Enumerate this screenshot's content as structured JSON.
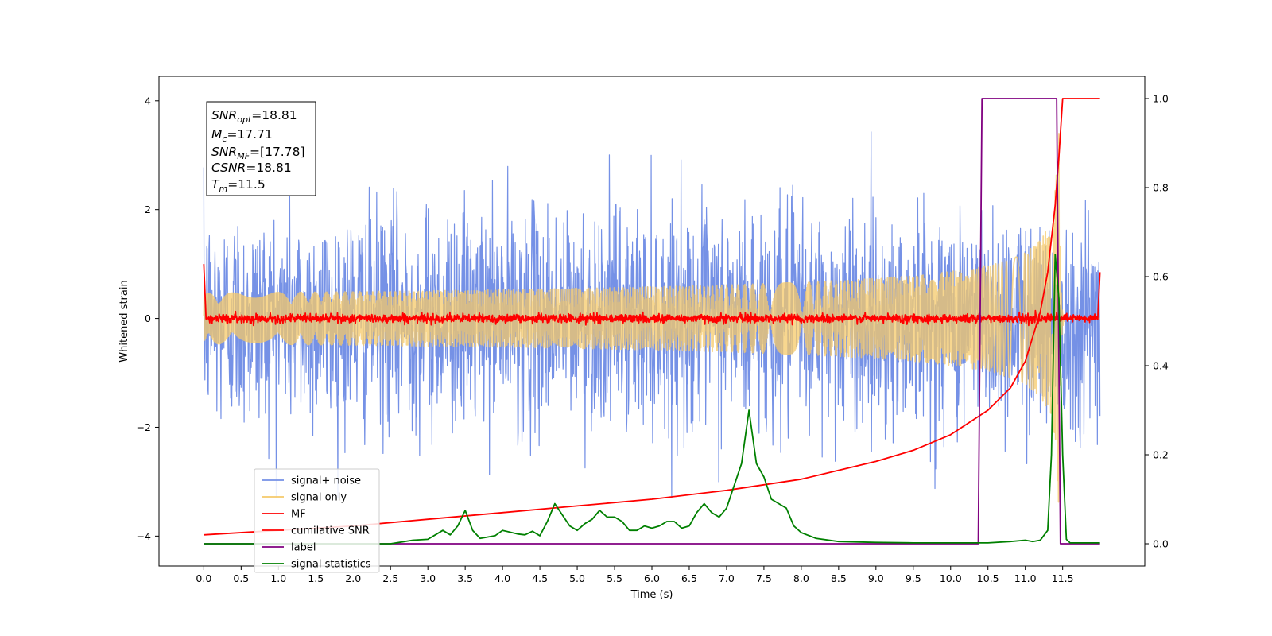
{
  "chart_data": {
    "type": "line",
    "title": "",
    "xlabel": "Time (s)",
    "ylabel": "Whitened strain",
    "xlim": [
      -0.6,
      12.6
    ],
    "ylim": [
      -4.55,
      4.45
    ],
    "y2lim": [
      -0.05,
      1.05
    ],
    "x_ticks": [
      "0.0",
      "0.5",
      "1.0",
      "1.5",
      "2.0",
      "2.5",
      "3.0",
      "3.5",
      "4.0",
      "4.5",
      "5.0",
      "5.5",
      "6.0",
      "6.5",
      "7.0",
      "7.5",
      "8.0",
      "8.5",
      "9.0",
      "9.5",
      "10.0",
      "10.5",
      "11.0",
      "11.5"
    ],
    "y_ticks": [
      "4",
      "2",
      "0",
      "−2",
      "−4"
    ],
    "y2_ticks": [
      "1.0",
      "0.8",
      "0.6",
      "0.4",
      "0.2",
      "0.0"
    ],
    "grid": false,
    "legend_position": "lower-left",
    "annotation": {
      "snr_opt": {
        "label": "SNR",
        "sub": "opt",
        "value": "=18.81"
      },
      "mc": {
        "label": "M",
        "sub": "c",
        "value": "=17.71"
      },
      "snr_mf": {
        "label": "SNR",
        "sub": "MF",
        "value": "=[17.78]"
      },
      "csnr": {
        "label": "CSNR",
        "value": "=18.81"
      },
      "tm": {
        "label": "T",
        "sub": "m",
        "value": "=11.5"
      }
    },
    "series": [
      {
        "name": "signal+ noise",
        "color": "#7591e6",
        "axis": "left",
        "kind": "noise",
        "x_range": [
          0.0,
          12.0
        ],
        "amplitude_sigma": 1.0
      },
      {
        "name": "signal only",
        "color": "#f5c96a",
        "axis": "left",
        "kind": "chirp",
        "x_range": [
          0.0,
          12.0
        ],
        "peak_amplitude": 3.4,
        "merger_time": 11.45
      },
      {
        "name": "MF",
        "color": "#ff0000",
        "axis": "left",
        "kind": "mf",
        "x_range": [
          0.0,
          12.0
        ],
        "start_value": 1.0,
        "end_value": 0.85,
        "noise_sigma": 0.04
      },
      {
        "name": "cumilative SNR",
        "color": "#ff0000",
        "axis": "right",
        "x": [
          0.0,
          1.0,
          2.0,
          3.0,
          4.0,
          5.0,
          6.0,
          7.0,
          8.0,
          8.5,
          9.0,
          9.5,
          10.0,
          10.5,
          10.8,
          11.0,
          11.2,
          11.3,
          11.4,
          11.45,
          11.5,
          11.55,
          12.0
        ],
        "y": [
          0.02,
          0.03,
          0.04,
          0.055,
          0.07,
          0.085,
          0.1,
          0.12,
          0.145,
          0.165,
          0.185,
          0.21,
          0.245,
          0.3,
          0.35,
          0.41,
          0.52,
          0.61,
          0.76,
          0.87,
          1.0,
          1.0,
          1.0
        ]
      },
      {
        "name": "label",
        "color": "#800080",
        "axis": "right",
        "x": [
          0.0,
          10.37,
          10.42,
          11.42,
          11.47,
          12.0
        ],
        "y": [
          0.0,
          0.0,
          1.0,
          1.0,
          0.0,
          0.0
        ]
      },
      {
        "name": "signal statistics",
        "color": "#008000",
        "axis": "right",
        "x": [
          0.0,
          0.5,
          1.0,
          1.5,
          2.0,
          2.5,
          2.8,
          3.0,
          3.1,
          3.2,
          3.3,
          3.4,
          3.5,
          3.6,
          3.7,
          3.9,
          4.0,
          4.2,
          4.3,
          4.4,
          4.5,
          4.6,
          4.7,
          4.8,
          4.9,
          5.0,
          5.1,
          5.2,
          5.3,
          5.4,
          5.5,
          5.6,
          5.7,
          5.8,
          5.9,
          6.0,
          6.1,
          6.2,
          6.3,
          6.4,
          6.5,
          6.6,
          6.7,
          6.8,
          6.9,
          7.0,
          7.1,
          7.2,
          7.3,
          7.4,
          7.5,
          7.6,
          7.7,
          7.8,
          7.9,
          8.0,
          8.2,
          8.5,
          9.0,
          9.5,
          10.0,
          10.5,
          10.8,
          11.0,
          11.1,
          11.2,
          11.3,
          11.35,
          11.4,
          11.45,
          11.5,
          11.55,
          11.6,
          11.7,
          12.0
        ],
        "y": [
          0.0,
          0.0,
          0.0,
          0.0,
          0.0,
          0.0,
          0.008,
          0.01,
          0.02,
          0.03,
          0.02,
          0.04,
          0.075,
          0.03,
          0.012,
          0.018,
          0.03,
          0.022,
          0.02,
          0.028,
          0.018,
          0.05,
          0.09,
          0.065,
          0.04,
          0.03,
          0.045,
          0.055,
          0.075,
          0.06,
          0.06,
          0.05,
          0.03,
          0.03,
          0.04,
          0.035,
          0.04,
          0.05,
          0.05,
          0.035,
          0.04,
          0.07,
          0.09,
          0.07,
          0.06,
          0.08,
          0.13,
          0.18,
          0.3,
          0.18,
          0.15,
          0.1,
          0.09,
          0.08,
          0.04,
          0.025,
          0.012,
          0.005,
          0.003,
          0.002,
          0.002,
          0.002,
          0.005,
          0.008,
          0.005,
          0.008,
          0.03,
          0.2,
          0.65,
          0.55,
          0.2,
          0.01,
          0.002,
          0.002,
          0.002
        ]
      }
    ]
  }
}
